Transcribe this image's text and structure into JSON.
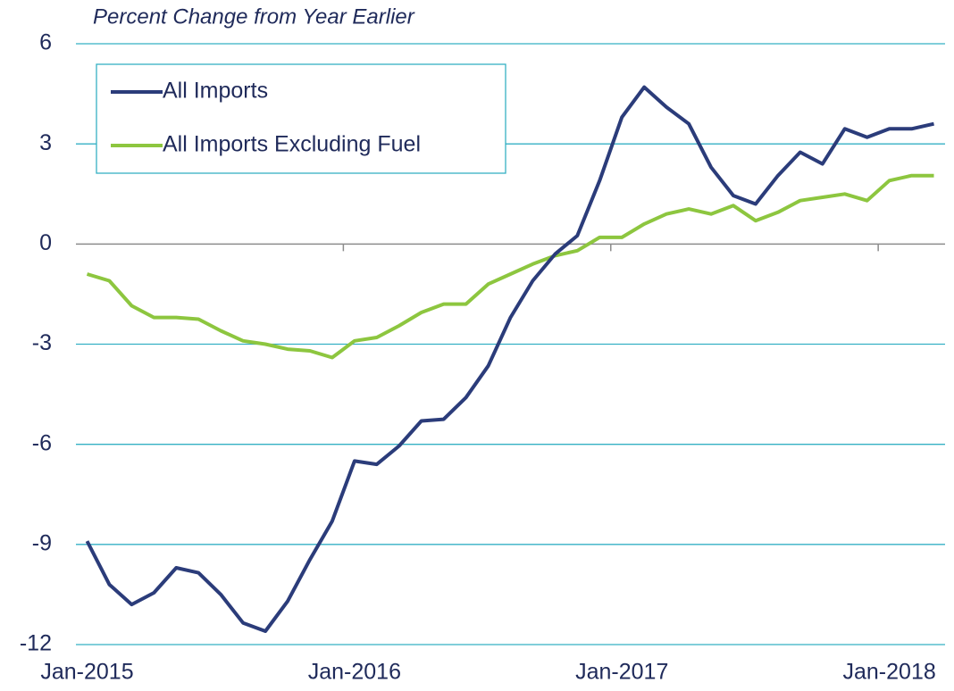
{
  "chart_data": {
    "type": "line",
    "subtitle": "Percent Change from Year Earlier",
    "categories": [
      "Jan-2015",
      null,
      null,
      null,
      null,
      null,
      null,
      null,
      null,
      null,
      null,
      null,
      "Jan-2016",
      null,
      null,
      null,
      null,
      null,
      null,
      null,
      null,
      null,
      null,
      null,
      "Jan-2017",
      null,
      null,
      null,
      null,
      null,
      null,
      null,
      null,
      null,
      null,
      null,
      "Jan-2018",
      null,
      null
    ],
    "series": [
      {
        "name": "All Imports",
        "color": "#2b3c7a",
        "values": [
          -8.9,
          -10.2,
          -10.8,
          -10.45,
          -9.7,
          -9.85,
          -10.5,
          -11.35,
          -11.6,
          -10.7,
          -9.45,
          -8.3,
          -6.5,
          -6.6,
          -6.05,
          -5.3,
          -5.25,
          -4.6,
          -3.65,
          -2.2,
          -1.1,
          -0.3,
          0.25,
          1.9,
          3.8,
          4.7,
          4.1,
          3.6,
          2.3,
          1.45,
          1.2,
          2.05,
          2.75,
          2.4,
          3.45,
          3.2,
          3.45,
          3.45,
          3.6
        ]
      },
      {
        "name": "All Imports Excluding Fuel",
        "color": "#8dc63f",
        "values": [
          -0.9,
          -1.1,
          -1.85,
          -2.2,
          -2.2,
          -2.25,
          -2.6,
          -2.9,
          -3.0,
          -3.15,
          -3.2,
          -3.4,
          -2.9,
          -2.8,
          -2.45,
          -2.05,
          -1.8,
          -1.8,
          -1.2,
          -0.9,
          -0.6,
          -0.35,
          -0.2,
          0.2,
          0.2,
          0.6,
          0.9,
          1.05,
          0.9,
          1.15,
          0.7,
          0.95,
          1.3,
          1.4,
          1.5,
          1.3,
          1.9,
          2.05,
          2.05
        ]
      }
    ],
    "ylim": [
      -12,
      6
    ],
    "yticks": [
      -12,
      -9,
      -6,
      -3,
      0,
      3,
      6
    ],
    "grid": true,
    "legend": "upper left"
  }
}
